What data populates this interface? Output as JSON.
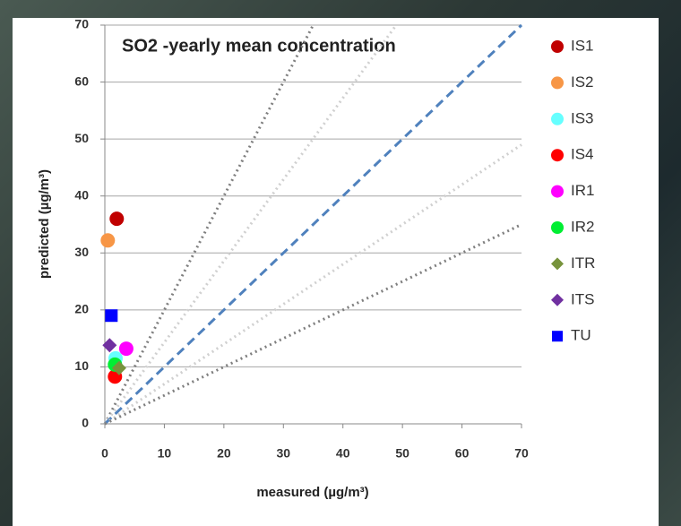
{
  "chart_data": {
    "type": "scatter",
    "title": "SO2 -yearly mean concentration",
    "xlabel": "measured (µg/m³)",
    "ylabel": "predicted (µg/m³)",
    "xlim": [
      0,
      70
    ],
    "ylim": [
      0,
      70
    ],
    "xticks": [
      0,
      10,
      20,
      30,
      40,
      50,
      60,
      70
    ],
    "yticks": [
      0,
      10,
      20,
      30,
      40,
      50,
      60,
      70
    ],
    "grid": true,
    "legend": "right",
    "reference_lines": [
      {
        "slope": 2,
        "color": "#7f7f7f",
        "style": "dotted"
      },
      {
        "slope": 1.43,
        "color": "#d0d0d0",
        "style": "dotted"
      },
      {
        "slope": 1,
        "color": "#4f81bd",
        "style": "dashed"
      },
      {
        "slope": 0.7,
        "color": "#d0d0d0",
        "style": "dotted"
      },
      {
        "slope": 0.5,
        "color": "#7f7f7f",
        "style": "dotted"
      }
    ],
    "series": [
      {
        "name": "IS1",
        "color": "#c00000",
        "marker": "circle",
        "x": [
          2
        ],
        "values": [
          36
        ]
      },
      {
        "name": "IS2",
        "color": "#f79646",
        "marker": "circle",
        "x": [
          0.5
        ],
        "values": [
          32.2
        ]
      },
      {
        "name": "IS3",
        "color": "#66ffff",
        "marker": "circle",
        "x": [
          1.8
        ],
        "values": [
          11.5
        ]
      },
      {
        "name": "IS4",
        "color": "#ff0000",
        "marker": "circle",
        "x": [
          1.7
        ],
        "values": [
          8.3
        ]
      },
      {
        "name": "IR1",
        "color": "#ff00ff",
        "marker": "circle",
        "x": [
          3.6
        ],
        "values": [
          13.2
        ]
      },
      {
        "name": "IR2",
        "color": "#00ee33",
        "marker": "circle",
        "x": [
          1.7
        ],
        "values": [
          10.4
        ]
      },
      {
        "name": "ITR",
        "color": "#77933c",
        "marker": "diamond",
        "x": [
          2.4
        ],
        "values": [
          9.8
        ]
      },
      {
        "name": "ITS",
        "color": "#7030a0",
        "marker": "diamond",
        "x": [
          0.8
        ],
        "values": [
          13.8
        ]
      },
      {
        "name": "TU",
        "color": "#0000ff",
        "marker": "square",
        "x": [
          1.1
        ],
        "values": [
          19
        ]
      }
    ]
  }
}
